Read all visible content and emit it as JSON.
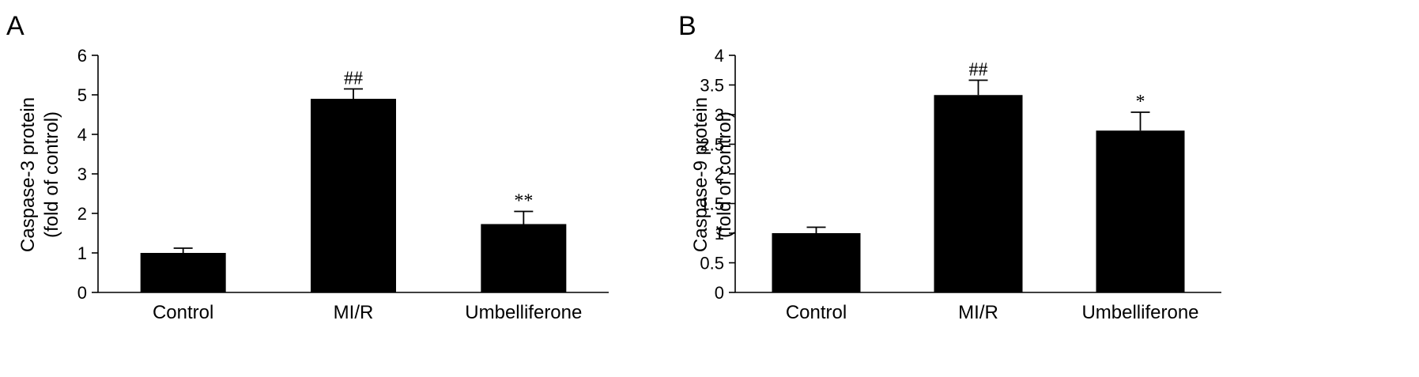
{
  "chart_data": [
    {
      "panel": "A",
      "type": "bar",
      "categories": [
        "Control",
        "MI/R",
        "Umbelliferone"
      ],
      "values": [
        1.0,
        4.9,
        1.73
      ],
      "errors": [
        0.12,
        0.25,
        0.32
      ],
      "significance": [
        "",
        "##",
        "**"
      ],
      "ylabel_lines": [
        "Caspase-3 protein",
        "(fold of control)"
      ],
      "yticks": [
        "0",
        "1",
        "2",
        "3",
        "4",
        "5",
        "6"
      ],
      "ylim": [
        0,
        6
      ],
      "grid": false,
      "legend": "none"
    },
    {
      "panel": "B",
      "type": "bar",
      "categories": [
        "Control",
        "MI/R",
        "Umbelliferone"
      ],
      "values": [
        1.0,
        3.33,
        2.73
      ],
      "errors": [
        0.1,
        0.25,
        0.31
      ],
      "significance": [
        "",
        "##",
        "*"
      ],
      "ylabel_lines": [
        "Caspase-9 protein",
        "(fold of control)"
      ],
      "yticks": [
        "0",
        "0.5",
        "1",
        "1.5",
        "2",
        "2.5",
        "3",
        "3.5",
        "4"
      ],
      "ylim": [
        0,
        4
      ],
      "grid": false,
      "legend": "none"
    }
  ]
}
